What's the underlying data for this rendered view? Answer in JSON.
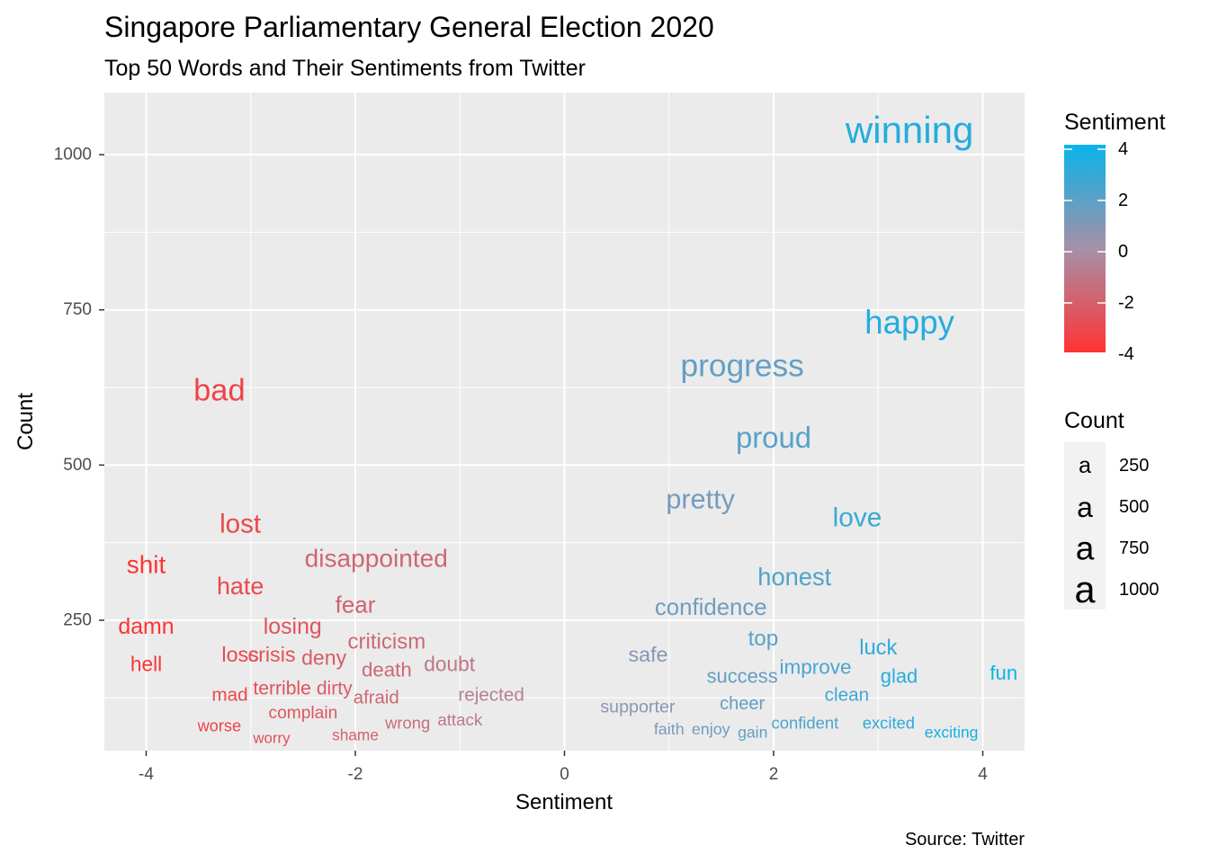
{
  "chart_data": {
    "type": "scatter",
    "title": "Singapore Parliamentary General Election 2020",
    "subtitle": "Top 50 Words and Their Sentiments from Twitter",
    "xlabel": "Sentiment",
    "ylabel": "Count",
    "caption": "Source: Twitter",
    "xlim": [
      -4.4,
      4.4
    ],
    "ylim": [
      40,
      1100
    ],
    "x_ticks": [
      -4,
      -2,
      0,
      2,
      4
    ],
    "x_tick_labels": [
      "-4",
      "-2",
      "0",
      "2",
      "4"
    ],
    "y_ticks": [
      250,
      500,
      750,
      1000
    ],
    "y_tick_labels": [
      "250",
      "500",
      "750",
      "1000"
    ],
    "grid": true,
    "color_legend": {
      "title": "Sentiment",
      "labels": [
        "4",
        "2",
        "0",
        "-2",
        "-4"
      ],
      "values": [
        4,
        2,
        0,
        -2,
        -4
      ],
      "low_color": "#ff3333",
      "mid_color": "#a690a8",
      "high_color": "#09b3ea"
    },
    "size_legend": {
      "title": "Count",
      "labels": [
        "250",
        "500",
        "750",
        "1000"
      ],
      "values": [
        250,
        500,
        750,
        1000
      ],
      "glyph": "a"
    },
    "points": [
      {
        "word": "winning",
        "sentiment": 3.3,
        "count": 1040
      },
      {
        "word": "happy",
        "sentiment": 3.3,
        "count": 730
      },
      {
        "word": "progress",
        "sentiment": 1.7,
        "count": 660
      },
      {
        "word": "bad",
        "sentiment": -3.3,
        "count": 620
      },
      {
        "word": "proud",
        "sentiment": 2.0,
        "count": 545
      },
      {
        "word": "pretty",
        "sentiment": 1.3,
        "count": 445
      },
      {
        "word": "love",
        "sentiment": 2.8,
        "count": 415
      },
      {
        "word": "lost",
        "sentiment": -3.1,
        "count": 405
      },
      {
        "word": "disappointed",
        "sentiment": -1.8,
        "count": 350
      },
      {
        "word": "shit",
        "sentiment": -4.0,
        "count": 340
      },
      {
        "word": "honest",
        "sentiment": 2.2,
        "count": 320
      },
      {
        "word": "hate",
        "sentiment": -3.1,
        "count": 305
      },
      {
        "word": "confidence",
        "sentiment": 1.4,
        "count": 270
      },
      {
        "word": "fear",
        "sentiment": -2.0,
        "count": 275
      },
      {
        "word": "losing",
        "sentiment": -2.6,
        "count": 240
      },
      {
        "word": "damn",
        "sentiment": -4.0,
        "count": 240
      },
      {
        "word": "top",
        "sentiment": 1.9,
        "count": 220
      },
      {
        "word": "criticism",
        "sentiment": -1.7,
        "count": 215
      },
      {
        "word": "luck",
        "sentiment": 3.0,
        "count": 205
      },
      {
        "word": "safe",
        "sentiment": 0.8,
        "count": 195
      },
      {
        "word": "loss",
        "sentiment": -3.1,
        "count": 195
      },
      {
        "word": "crisis",
        "sentiment": -2.8,
        "count": 195
      },
      {
        "word": "deny",
        "sentiment": -2.3,
        "count": 190
      },
      {
        "word": "hell",
        "sentiment": -4.0,
        "count": 180
      },
      {
        "word": "doubt",
        "sentiment": -1.1,
        "count": 180
      },
      {
        "word": "improve",
        "sentiment": 2.4,
        "count": 175
      },
      {
        "word": "death",
        "sentiment": -1.7,
        "count": 170
      },
      {
        "word": "fun",
        "sentiment": 4.2,
        "count": 165
      },
      {
        "word": "success",
        "sentiment": 1.7,
        "count": 160
      },
      {
        "word": "glad",
        "sentiment": 3.2,
        "count": 160
      },
      {
        "word": "dirty",
        "sentiment": -2.2,
        "count": 140
      },
      {
        "word": "terrible",
        "sentiment": -2.7,
        "count": 140
      },
      {
        "word": "rejected",
        "sentiment": -0.7,
        "count": 130
      },
      {
        "word": "mad",
        "sentiment": -3.2,
        "count": 130
      },
      {
        "word": "clean",
        "sentiment": 2.7,
        "count": 130
      },
      {
        "word": "afraid",
        "sentiment": -1.8,
        "count": 125
      },
      {
        "word": "cheer",
        "sentiment": 1.7,
        "count": 115
      },
      {
        "word": "supporter",
        "sentiment": 0.7,
        "count": 110
      },
      {
        "word": "complain",
        "sentiment": -2.5,
        "count": 100
      },
      {
        "word": "attack",
        "sentiment": -1.0,
        "count": 90
      },
      {
        "word": "excited",
        "sentiment": 3.1,
        "count": 85
      },
      {
        "word": "confident",
        "sentiment": 2.3,
        "count": 85
      },
      {
        "word": "wrong",
        "sentiment": -1.5,
        "count": 85
      },
      {
        "word": "worse",
        "sentiment": -3.3,
        "count": 80
      },
      {
        "word": "enjoy",
        "sentiment": 1.4,
        "count": 75
      },
      {
        "word": "faith",
        "sentiment": 1.0,
        "count": 75
      },
      {
        "word": "exciting",
        "sentiment": 3.7,
        "count": 70
      },
      {
        "word": "gain",
        "sentiment": 1.8,
        "count": 70
      },
      {
        "word": "shame",
        "sentiment": -2.0,
        "count": 65
      },
      {
        "word": "worry",
        "sentiment": -2.8,
        "count": 60
      }
    ]
  }
}
